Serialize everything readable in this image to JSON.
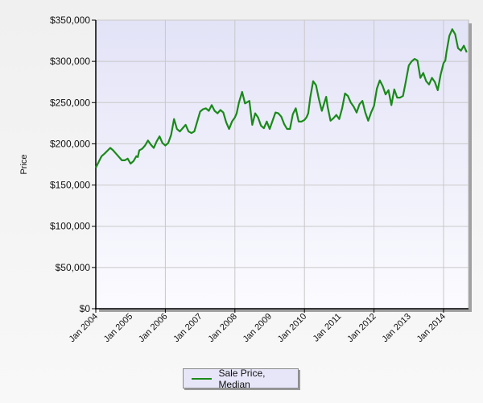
{
  "chart_data": {
    "type": "line",
    "title": "",
    "xlabel": "",
    "ylabel": "Price",
    "ylim": [
      0,
      350000
    ],
    "yticks": [
      0,
      50000,
      100000,
      150000,
      200000,
      250000,
      300000,
      350000
    ],
    "ytick_labels": [
      "$0",
      "$50,000",
      "$100,000",
      "$150,000",
      "$200,000",
      "$250,000",
      "$300,000",
      "$350,000"
    ],
    "xtick_labels": [
      "Jan 2004",
      "Jan 2005",
      "Jan 2006",
      "Jan 2007",
      "Jan 2008",
      "Jan 2009",
      "Jan 2010",
      "Jan 2011",
      "Jan 2012",
      "Jan 2013",
      "Jan 2014"
    ],
    "grid": true,
    "legend_position": "bottom",
    "series": [
      {
        "name": "Sale Price, Median",
        "color": "#1a8a1a",
        "x_months_since_jan2004": [
          0,
          1,
          2,
          3,
          5,
          6,
          7,
          9,
          10,
          11,
          12,
          13,
          14,
          14.5,
          15,
          16,
          17,
          18,
          19,
          20,
          21,
          22,
          23,
          24,
          25,
          26,
          27,
          28,
          29,
          30,
          31,
          32,
          33,
          34,
          35,
          36,
          37,
          38,
          39,
          40,
          41,
          42,
          43,
          44,
          45,
          46,
          47,
          48,
          48.6,
          49.4,
          50.5,
          51.5,
          53,
          54,
          55,
          56,
          57,
          58,
          59,
          60,
          61,
          62,
          63,
          64,
          65,
          66,
          67,
          68,
          69,
          70,
          71,
          72,
          72.7,
          73.3,
          74,
          75,
          76,
          77,
          78,
          78.6,
          79.5,
          80,
          81,
          82,
          83,
          84,
          85,
          86,
          87,
          88,
          89,
          90,
          91,
          92,
          93,
          94,
          95,
          96,
          97,
          98,
          99,
          100,
          101,
          102,
          103,
          104,
          105,
          106,
          107,
          108,
          109,
          110,
          111,
          112,
          113,
          114,
          115,
          116,
          117,
          118,
          119,
          120,
          120.6,
          121,
          122,
          123,
          124,
          125,
          126,
          127,
          128
        ],
        "values": [
          171000,
          178000,
          185000,
          188000,
          195000,
          192000,
          188000,
          180000,
          180000,
          182000,
          176000,
          179000,
          185000,
          184000,
          192000,
          194000,
          198000,
          204000,
          199000,
          195000,
          203000,
          209000,
          201000,
          198000,
          201000,
          211000,
          230000,
          218000,
          215000,
          219000,
          223000,
          215000,
          213000,
          215000,
          227000,
          239000,
          242000,
          243000,
          240000,
          247000,
          240000,
          237000,
          241000,
          238000,
          226000,
          218000,
          227000,
          232000,
          237000,
          250000,
          263000,
          249000,
          252000,
          223000,
          237000,
          232000,
          222000,
          219000,
          227000,
          218000,
          228000,
          238000,
          237000,
          233000,
          224000,
          218000,
          218000,
          236000,
          243000,
          227000,
          227000,
          229000,
          232000,
          237000,
          256000,
          276000,
          271000,
          254000,
          240000,
          247000,
          257000,
          245000,
          228000,
          231000,
          235000,
          230000,
          243000,
          261000,
          258000,
          250000,
          245000,
          238000,
          248000,
          252000,
          238000,
          228000,
          238000,
          246000,
          267000,
          277000,
          270000,
          260000,
          265000,
          247000,
          266000,
          256000,
          256000,
          258000,
          276000,
          295000,
          300000,
          303000,
          301000,
          280000,
          286000,
          276000,
          272000,
          280000,
          275000,
          265000,
          284000,
          298000,
          301000,
          311000,
          331000,
          339000,
          333000,
          316000,
          313000,
          319000,
          311000
        ]
      }
    ]
  },
  "legend": {
    "items": [
      {
        "label": "Sale Price, Median",
        "color": "#1a8a1a"
      }
    ]
  },
  "axes": {
    "y_title": "Price"
  }
}
